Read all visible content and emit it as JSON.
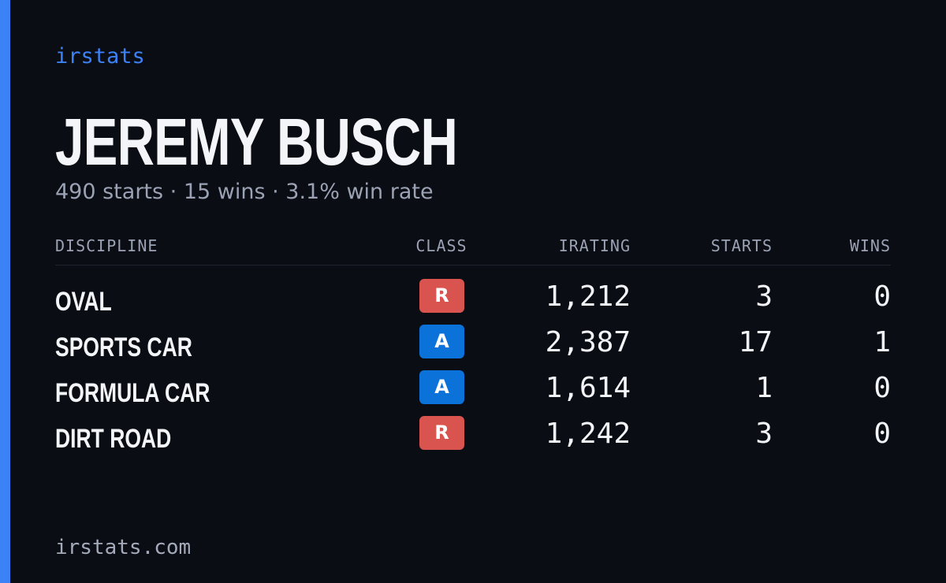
{
  "brand": "irstats",
  "driver": {
    "name": "JEREMY BUSCH",
    "summary": "490 starts · 15 wins · 3.1% win rate"
  },
  "table": {
    "headers": [
      "DISCIPLINE",
      "CLASS",
      "IRATING",
      "STARTS",
      "WINS"
    ],
    "rows": [
      {
        "discipline": "OVAL",
        "class": "R",
        "class_color": "#d9534f",
        "irating": "1,212",
        "starts": "3",
        "wins": "0"
      },
      {
        "discipline": "SPORTS CAR",
        "class": "A",
        "class_color": "#0b72d9",
        "irating": "2,387",
        "starts": "17",
        "wins": "1"
      },
      {
        "discipline": "FORMULA CAR",
        "class": "A",
        "class_color": "#0b72d9",
        "irating": "1,614",
        "starts": "1",
        "wins": "0"
      },
      {
        "discipline": "DIRT ROAD",
        "class": "R",
        "class_color": "#d9534f",
        "irating": "1,242",
        "starts": "3",
        "wins": "0"
      }
    ]
  },
  "footer": "irstats.com"
}
